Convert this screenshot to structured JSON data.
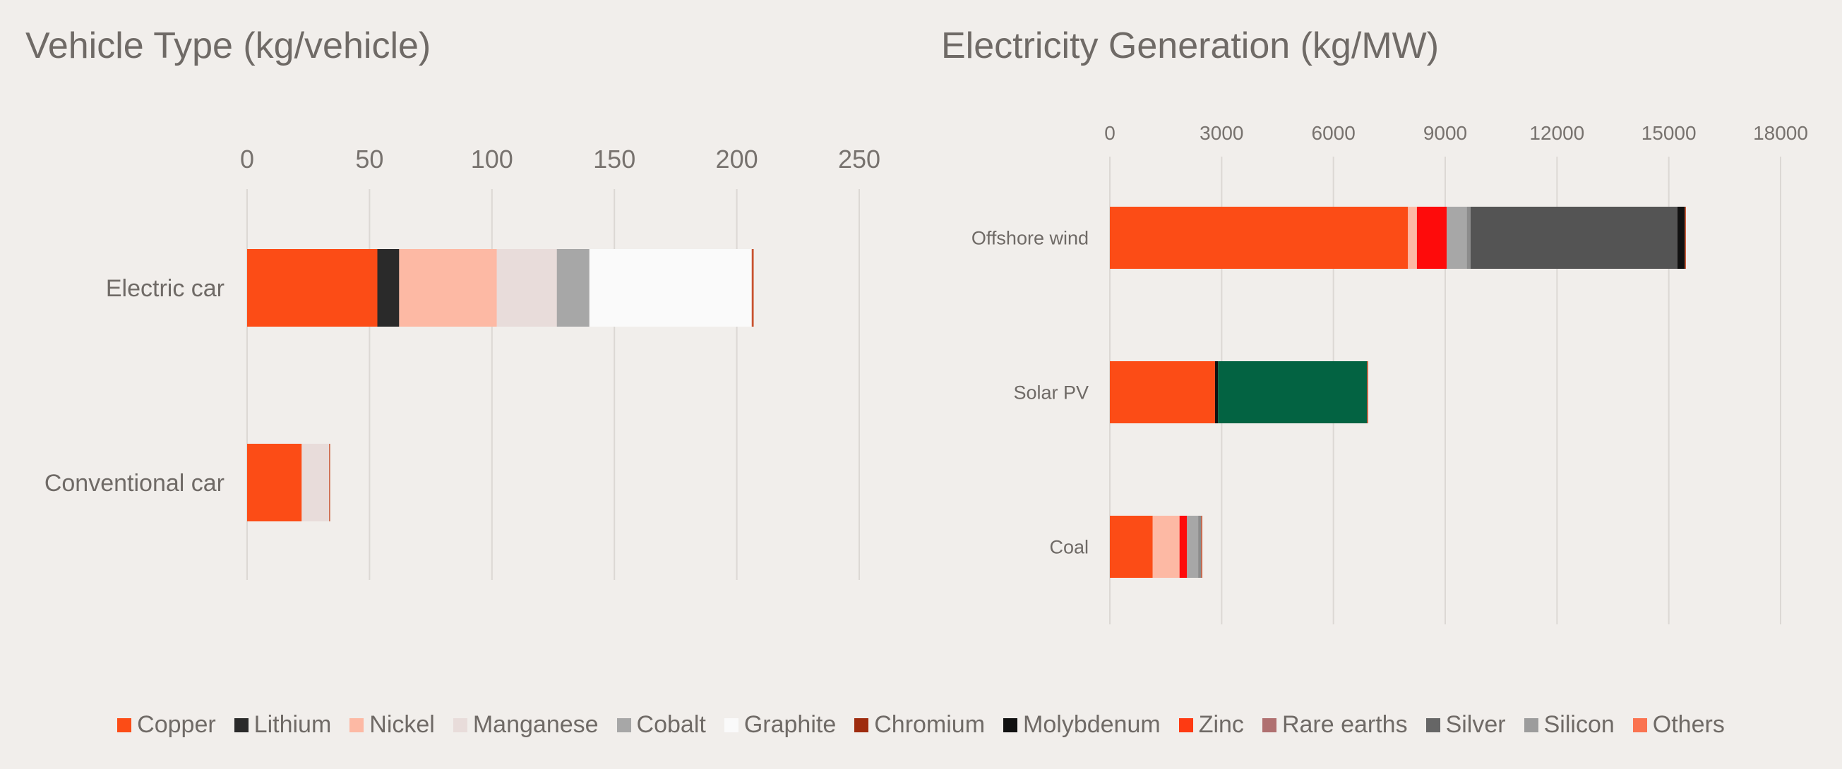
{
  "legend": [
    {
      "name": "Copper",
      "color": "#fc4c16"
    },
    {
      "name": "Lithium",
      "color": "#2a2a2a"
    },
    {
      "name": "Nickel",
      "color": "#fdb9a4"
    },
    {
      "name": "Manganese",
      "color": "#e8dcda"
    },
    {
      "name": "Cobalt",
      "color": "#a7a7a7"
    },
    {
      "name": "Graphite",
      "color": "#fafafa"
    },
    {
      "name": "Chromium",
      "color": "#9e2b0e"
    },
    {
      "name": "Molybdenum",
      "color": "#111111"
    },
    {
      "name": "Zinc",
      "color": "#fe3a12"
    },
    {
      "name": "Rare earths",
      "color": "#b07070"
    },
    {
      "name": "Silver",
      "color": "#666666"
    },
    {
      "name": "Silicon",
      "color": "#9c9c9c"
    },
    {
      "name": "Others",
      "color": "#fa7350"
    }
  ],
  "chart_data": [
    {
      "type": "bar",
      "orientation": "horizontal-stacked",
      "title": "Vehicle Type (kg/vehicle)",
      "categories": [
        "Electric car",
        "Conventional car"
      ],
      "xlim": [
        0,
        250
      ],
      "xticks": [
        "0",
        "50",
        "100",
        "150",
        "200",
        "250"
      ],
      "grid": true,
      "series": [
        {
          "name": "Copper",
          "color": "#fc4c16",
          "values": [
            53.2,
            22.3
          ]
        },
        {
          "name": "Lithium",
          "color": "#2a2a2a",
          "values": [
            8.9,
            0
          ]
        },
        {
          "name": "Nickel",
          "color": "#fdb9a4",
          "values": [
            39.9,
            0
          ]
        },
        {
          "name": "Manganese",
          "color": "#e8dcda",
          "values": [
            24.5,
            11.2
          ]
        },
        {
          "name": "Cobalt",
          "color": "#a7a7a7",
          "values": [
            13.3,
            0
          ]
        },
        {
          "name": "Graphite",
          "color": "#fafafa",
          "values": [
            66.3,
            0
          ]
        },
        {
          "name": "Others",
          "color": "#c8522f",
          "values": [
            0.8,
            0.4
          ]
        }
      ]
    },
    {
      "type": "bar",
      "orientation": "horizontal-stacked",
      "title": "Electricity Generation (kg/MW)",
      "categories": [
        "Offshore wind",
        "Solar PV",
        "Coal"
      ],
      "xlim": [
        0,
        18000
      ],
      "xticks": [
        "0",
        "3000",
        "6000",
        "9000",
        "12000",
        "15000",
        "18000"
      ],
      "grid": true,
      "series": [
        {
          "name": "Copper",
          "color": "#fc4c16",
          "values": [
            8000,
            2822,
            1150
          ]
        },
        {
          "name": "Nickel",
          "color": "#fdb9a4",
          "values": [
            240,
            0,
            720
          ]
        },
        {
          "name": "Zinc",
          "color": "#fe0b0b",
          "values": [
            800,
            0,
            200
          ]
        },
        {
          "name": "Cobalt",
          "color": "#a7a7a7",
          "values": [
            540,
            0,
            300
          ]
        },
        {
          "name": "Rare earths",
          "color": "#8c8c8c",
          "values": [
            100,
            0,
            80
          ]
        },
        {
          "name": "Silver",
          "color": "#545454",
          "values": [
            5550,
            0,
            0
          ]
        },
        {
          "name": "Molybdenum",
          "color": "#111111",
          "values": [
            200,
            80,
            0
          ]
        },
        {
          "name": "Silicon",
          "color": "#036342",
          "values": [
            0,
            4000,
            0
          ]
        },
        {
          "name": "Others",
          "color": "#c8522f",
          "values": [
            30,
            30,
            30
          ]
        }
      ]
    }
  ]
}
